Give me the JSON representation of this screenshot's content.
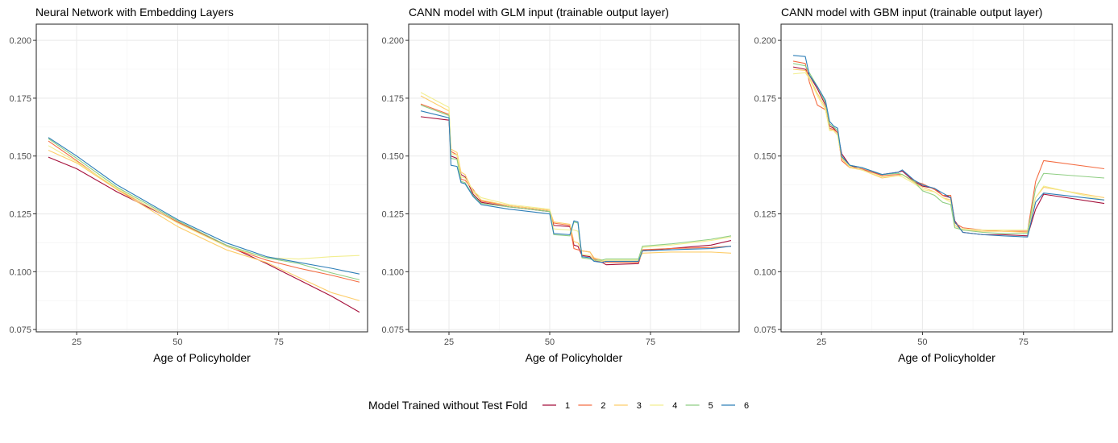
{
  "chart_data": [
    {
      "type": "line",
      "title": "Neural Network with Embedding Layers",
      "xlabel": "Age of Policyholder",
      "ylabel": "",
      "xlim": [
        15,
        97
      ],
      "ylim": [
        0.074,
        0.207
      ],
      "xticks": [
        25,
        50,
        75
      ],
      "yticks": [
        0.075,
        0.1,
        0.125,
        0.15,
        0.175,
        0.2
      ],
      "ytick_labels": [
        "0.075",
        "0.100",
        "0.125",
        "0.150",
        "0.175",
        "0.200"
      ],
      "grid": true,
      "series": [
        {
          "name": "1",
          "color": "#a50f3a",
          "x": [
            18,
            25,
            35,
            50,
            62,
            72,
            80,
            88,
            95
          ],
          "y": [
            0.1495,
            0.1445,
            0.1345,
            0.1215,
            0.1115,
            0.1035,
            0.0965,
            0.0895,
            0.0825
          ]
        },
        {
          "name": "2",
          "color": "#f46d43",
          "x": [
            18,
            25,
            35,
            50,
            62,
            72,
            80,
            88,
            95
          ],
          "y": [
            0.1565,
            0.148,
            0.1355,
            0.1215,
            0.111,
            0.105,
            0.1015,
            0.0985,
            0.0955
          ]
        },
        {
          "name": "3",
          "color": "#fdcd6a",
          "x": [
            18,
            25,
            35,
            50,
            62,
            72,
            80,
            88,
            95
          ],
          "y": [
            0.1525,
            0.147,
            0.1355,
            0.1195,
            0.1095,
            0.104,
            0.0975,
            0.091,
            0.0875
          ]
        },
        {
          "name": "4",
          "color": "#f2ee90",
          "x": [
            18,
            25,
            35,
            50,
            62,
            72,
            80,
            88,
            95
          ],
          "y": [
            0.1545,
            0.1475,
            0.136,
            0.121,
            0.111,
            0.106,
            0.1055,
            0.1065,
            0.107
          ]
        },
        {
          "name": "5",
          "color": "#8fce83",
          "x": [
            18,
            25,
            35,
            50,
            62,
            72,
            80,
            88,
            95
          ],
          "y": [
            0.1575,
            0.149,
            0.1365,
            0.122,
            0.1115,
            0.106,
            0.1035,
            0.0995,
            0.0965
          ]
        },
        {
          "name": "6",
          "color": "#2e7fb8",
          "x": [
            18,
            25,
            35,
            50,
            62,
            72,
            80,
            88,
            95
          ],
          "y": [
            0.158,
            0.15,
            0.1375,
            0.1225,
            0.1125,
            0.1065,
            0.104,
            0.1015,
            0.099
          ]
        }
      ]
    },
    {
      "type": "line",
      "title": "CANN model with GLM input (trainable output layer)",
      "xlabel": "Age of Policyholder",
      "ylabel": "",
      "xlim": [
        15,
        97
      ],
      "ylim": [
        0.074,
        0.207
      ],
      "xticks": [
        25,
        50,
        75
      ],
      "yticks": [
        0.075,
        0.1,
        0.125,
        0.15,
        0.175,
        0.2
      ],
      "ytick_labels": [
        "0.075",
        "0.100",
        "0.125",
        "0.150",
        "0.175",
        "0.200"
      ],
      "grid": true,
      "series": [
        {
          "name": "1",
          "color": "#a50f3a",
          "x": [
            18,
            25,
            25.5,
            27,
            28,
            29,
            31,
            33,
            40,
            50,
            51,
            55,
            56,
            57,
            58,
            60,
            61,
            63,
            64,
            72,
            73,
            80,
            90,
            95
          ],
          "y": [
            0.167,
            0.1655,
            0.15,
            0.149,
            0.142,
            0.141,
            0.1335,
            0.13,
            0.128,
            0.126,
            0.12,
            0.1195,
            0.1115,
            0.111,
            0.107,
            0.1065,
            0.105,
            0.104,
            0.103,
            0.1035,
            0.109,
            0.11,
            0.1115,
            0.1135
          ]
        },
        {
          "name": "2",
          "color": "#f46d43",
          "x": [
            18,
            25,
            25.5,
            27,
            28,
            29,
            31,
            33,
            40,
            50,
            51,
            55,
            56,
            57,
            58,
            60,
            61,
            63,
            64,
            72,
            73,
            80,
            90,
            95
          ],
          "y": [
            0.1725,
            0.168,
            0.152,
            0.1505,
            0.14,
            0.1395,
            0.1355,
            0.1305,
            0.1285,
            0.1265,
            0.121,
            0.12,
            0.11,
            0.1095,
            0.109,
            0.1085,
            0.1055,
            0.1045,
            0.104,
            0.104,
            0.1095,
            0.11,
            0.1105,
            0.111
          ]
        },
        {
          "name": "3",
          "color": "#fdcd6a",
          "x": [
            18,
            25,
            25.5,
            27,
            28,
            29,
            31,
            33,
            40,
            50,
            51,
            55,
            56,
            57,
            58,
            60,
            61,
            63,
            64,
            72,
            73,
            80,
            90,
            95
          ],
          "y": [
            0.176,
            0.1695,
            0.153,
            0.1515,
            0.143,
            0.142,
            0.1345,
            0.131,
            0.1285,
            0.1265,
            0.1215,
            0.1205,
            0.113,
            0.1125,
            0.109,
            0.1085,
            0.106,
            0.105,
            0.1045,
            0.1045,
            0.108,
            0.1085,
            0.1085,
            0.108
          ]
        },
        {
          "name": "4",
          "color": "#f2ee90",
          "x": [
            18,
            25,
            25.5,
            27,
            28,
            29,
            31,
            33,
            40,
            50,
            51,
            55,
            56,
            57,
            58,
            60,
            61,
            63,
            64,
            72,
            73,
            80,
            90,
            95
          ],
          "y": [
            0.1775,
            0.171,
            0.151,
            0.1505,
            0.141,
            0.1405,
            0.135,
            0.132,
            0.129,
            0.127,
            0.1185,
            0.118,
            0.118,
            0.1175,
            0.1075,
            0.107,
            0.105,
            0.1045,
            0.105,
            0.105,
            0.1105,
            0.1115,
            0.1135,
            0.115
          ]
        },
        {
          "name": "5",
          "color": "#8fce83",
          "x": [
            18,
            25,
            25.5,
            27,
            28,
            29,
            31,
            33,
            40,
            50,
            51,
            55,
            56,
            57,
            58,
            60,
            61,
            63,
            64,
            72,
            73,
            80,
            90,
            95
          ],
          "y": [
            0.172,
            0.1675,
            0.149,
            0.1485,
            0.139,
            0.1385,
            0.133,
            0.1295,
            0.128,
            0.126,
            0.116,
            0.1155,
            0.1215,
            0.121,
            0.106,
            0.1055,
            0.105,
            0.105,
            0.1055,
            0.1055,
            0.111,
            0.112,
            0.114,
            0.1155
          ]
        },
        {
          "name": "6",
          "color": "#2e7fb8",
          "x": [
            18,
            25,
            25.5,
            27,
            28,
            29,
            31,
            33,
            40,
            50,
            51,
            55,
            56,
            57,
            58,
            60,
            61,
            63,
            64,
            72,
            73,
            80,
            90,
            95
          ],
          "y": [
            0.1695,
            0.1665,
            0.146,
            0.1455,
            0.1385,
            0.138,
            0.1325,
            0.129,
            0.127,
            0.125,
            0.1165,
            0.116,
            0.122,
            0.1215,
            0.1065,
            0.106,
            0.1045,
            0.104,
            0.1045,
            0.1045,
            0.109,
            0.1095,
            0.11,
            0.111
          ]
        }
      ]
    },
    {
      "type": "line",
      "title": "CANN model with GBM input (trainable output layer)",
      "xlabel": "Age of Policyholder",
      "ylabel": "",
      "xlim": [
        15,
        97
      ],
      "ylim": [
        0.074,
        0.207
      ],
      "xticks": [
        25,
        50,
        75
      ],
      "yticks": [
        0.075,
        0.1,
        0.125,
        0.15,
        0.175,
        0.2
      ],
      "ytick_labels": [
        "0.075",
        "0.100",
        "0.125",
        "0.150",
        "0.175",
        "0.200"
      ],
      "grid": true,
      "series": [
        {
          "name": "1",
          "color": "#a50f3a",
          "x": [
            18,
            21,
            22,
            24,
            26,
            27,
            28,
            29,
            30,
            32,
            35,
            40,
            44,
            45,
            48,
            50,
            53,
            55,
            57,
            58,
            60,
            65,
            70,
            76,
            78,
            80,
            95
          ],
          "y": [
            0.1885,
            0.1875,
            0.185,
            0.179,
            0.172,
            0.163,
            0.162,
            0.16,
            0.151,
            0.146,
            0.144,
            0.142,
            0.143,
            0.1435,
            0.139,
            0.137,
            0.136,
            0.133,
            0.132,
            0.122,
            0.117,
            0.116,
            0.116,
            0.1155,
            0.127,
            0.1335,
            0.1295
          ]
        },
        {
          "name": "2",
          "color": "#f46d43",
          "x": [
            18,
            21,
            22,
            24,
            26,
            27,
            28,
            29,
            30,
            32,
            35,
            40,
            44,
            45,
            48,
            50,
            53,
            55,
            57,
            58,
            60,
            65,
            70,
            76,
            78,
            80,
            95
          ],
          "y": [
            0.191,
            0.19,
            0.182,
            0.172,
            0.17,
            0.162,
            0.1615,
            0.16,
            0.148,
            0.145,
            0.1445,
            0.1415,
            0.142,
            0.142,
            0.139,
            0.138,
            0.1355,
            0.133,
            0.133,
            0.121,
            0.119,
            0.118,
            0.1175,
            0.1175,
            0.139,
            0.148,
            0.1445
          ]
        },
        {
          "name": "3",
          "color": "#fdcd6a",
          "x": [
            18,
            21,
            22,
            24,
            26,
            27,
            28,
            29,
            30,
            32,
            35,
            40,
            44,
            45,
            48,
            50,
            53,
            55,
            57,
            58,
            60,
            65,
            70,
            76,
            78,
            80,
            95
          ],
          "y": [
            0.1875,
            0.187,
            0.184,
            0.177,
            0.171,
            0.1615,
            0.161,
            0.159,
            0.149,
            0.145,
            0.144,
            0.1405,
            0.1415,
            0.142,
            0.1385,
            0.1365,
            0.1345,
            0.132,
            0.131,
            0.12,
            0.118,
            0.1175,
            0.1175,
            0.117,
            0.132,
            0.1365,
            0.132
          ]
        },
        {
          "name": "4",
          "color": "#f2ee90",
          "x": [
            18,
            21,
            22,
            24,
            26,
            27,
            28,
            29,
            30,
            32,
            35,
            40,
            44,
            45,
            48,
            50,
            53,
            55,
            57,
            58,
            60,
            65,
            70,
            76,
            78,
            80,
            95
          ],
          "y": [
            0.1855,
            0.186,
            0.1835,
            0.176,
            0.17,
            0.161,
            0.161,
            0.159,
            0.15,
            0.1455,
            0.144,
            0.141,
            0.1415,
            0.141,
            0.138,
            0.1355,
            0.1345,
            0.132,
            0.13,
            0.119,
            0.1185,
            0.118,
            0.118,
            0.118,
            0.132,
            0.137,
            0.131
          ]
        },
        {
          "name": "5",
          "color": "#8fce83",
          "x": [
            18,
            21,
            22,
            24,
            26,
            27,
            28,
            29,
            30,
            32,
            35,
            40,
            44,
            45,
            48,
            50,
            53,
            55,
            57,
            58,
            60,
            65,
            70,
            76,
            78,
            80,
            95
          ],
          "y": [
            0.19,
            0.189,
            0.186,
            0.18,
            0.173,
            0.164,
            0.1625,
            0.161,
            0.1495,
            0.146,
            0.145,
            0.142,
            0.1425,
            0.142,
            0.139,
            0.135,
            0.133,
            0.13,
            0.129,
            0.119,
            0.118,
            0.117,
            0.1165,
            0.1165,
            0.136,
            0.1425,
            0.1405
          ]
        },
        {
          "name": "6",
          "color": "#2e7fb8",
          "x": [
            18,
            21,
            22,
            24,
            26,
            27,
            28,
            29,
            30,
            32,
            35,
            40,
            44,
            45,
            48,
            50,
            53,
            55,
            57,
            58,
            60,
            65,
            70,
            76,
            78,
            80,
            95
          ],
          "y": [
            0.1935,
            0.193,
            0.185,
            0.18,
            0.174,
            0.165,
            0.163,
            0.162,
            0.15,
            0.146,
            0.145,
            0.142,
            0.143,
            0.144,
            0.1395,
            0.1375,
            0.136,
            0.134,
            0.132,
            0.1215,
            0.117,
            0.116,
            0.1155,
            0.115,
            0.13,
            0.134,
            0.131
          ]
        }
      ]
    }
  ],
  "legend": {
    "title": "Model Trained without Test Fold",
    "placement": "bottom",
    "entries": [
      {
        "label": "1",
        "color": "#a50f3a"
      },
      {
        "label": "2",
        "color": "#f46d43"
      },
      {
        "label": "3",
        "color": "#fdcd6a"
      },
      {
        "label": "4",
        "color": "#f2ee90"
      },
      {
        "label": "5",
        "color": "#8fce83"
      },
      {
        "label": "6",
        "color": "#2e7fb8"
      }
    ]
  }
}
